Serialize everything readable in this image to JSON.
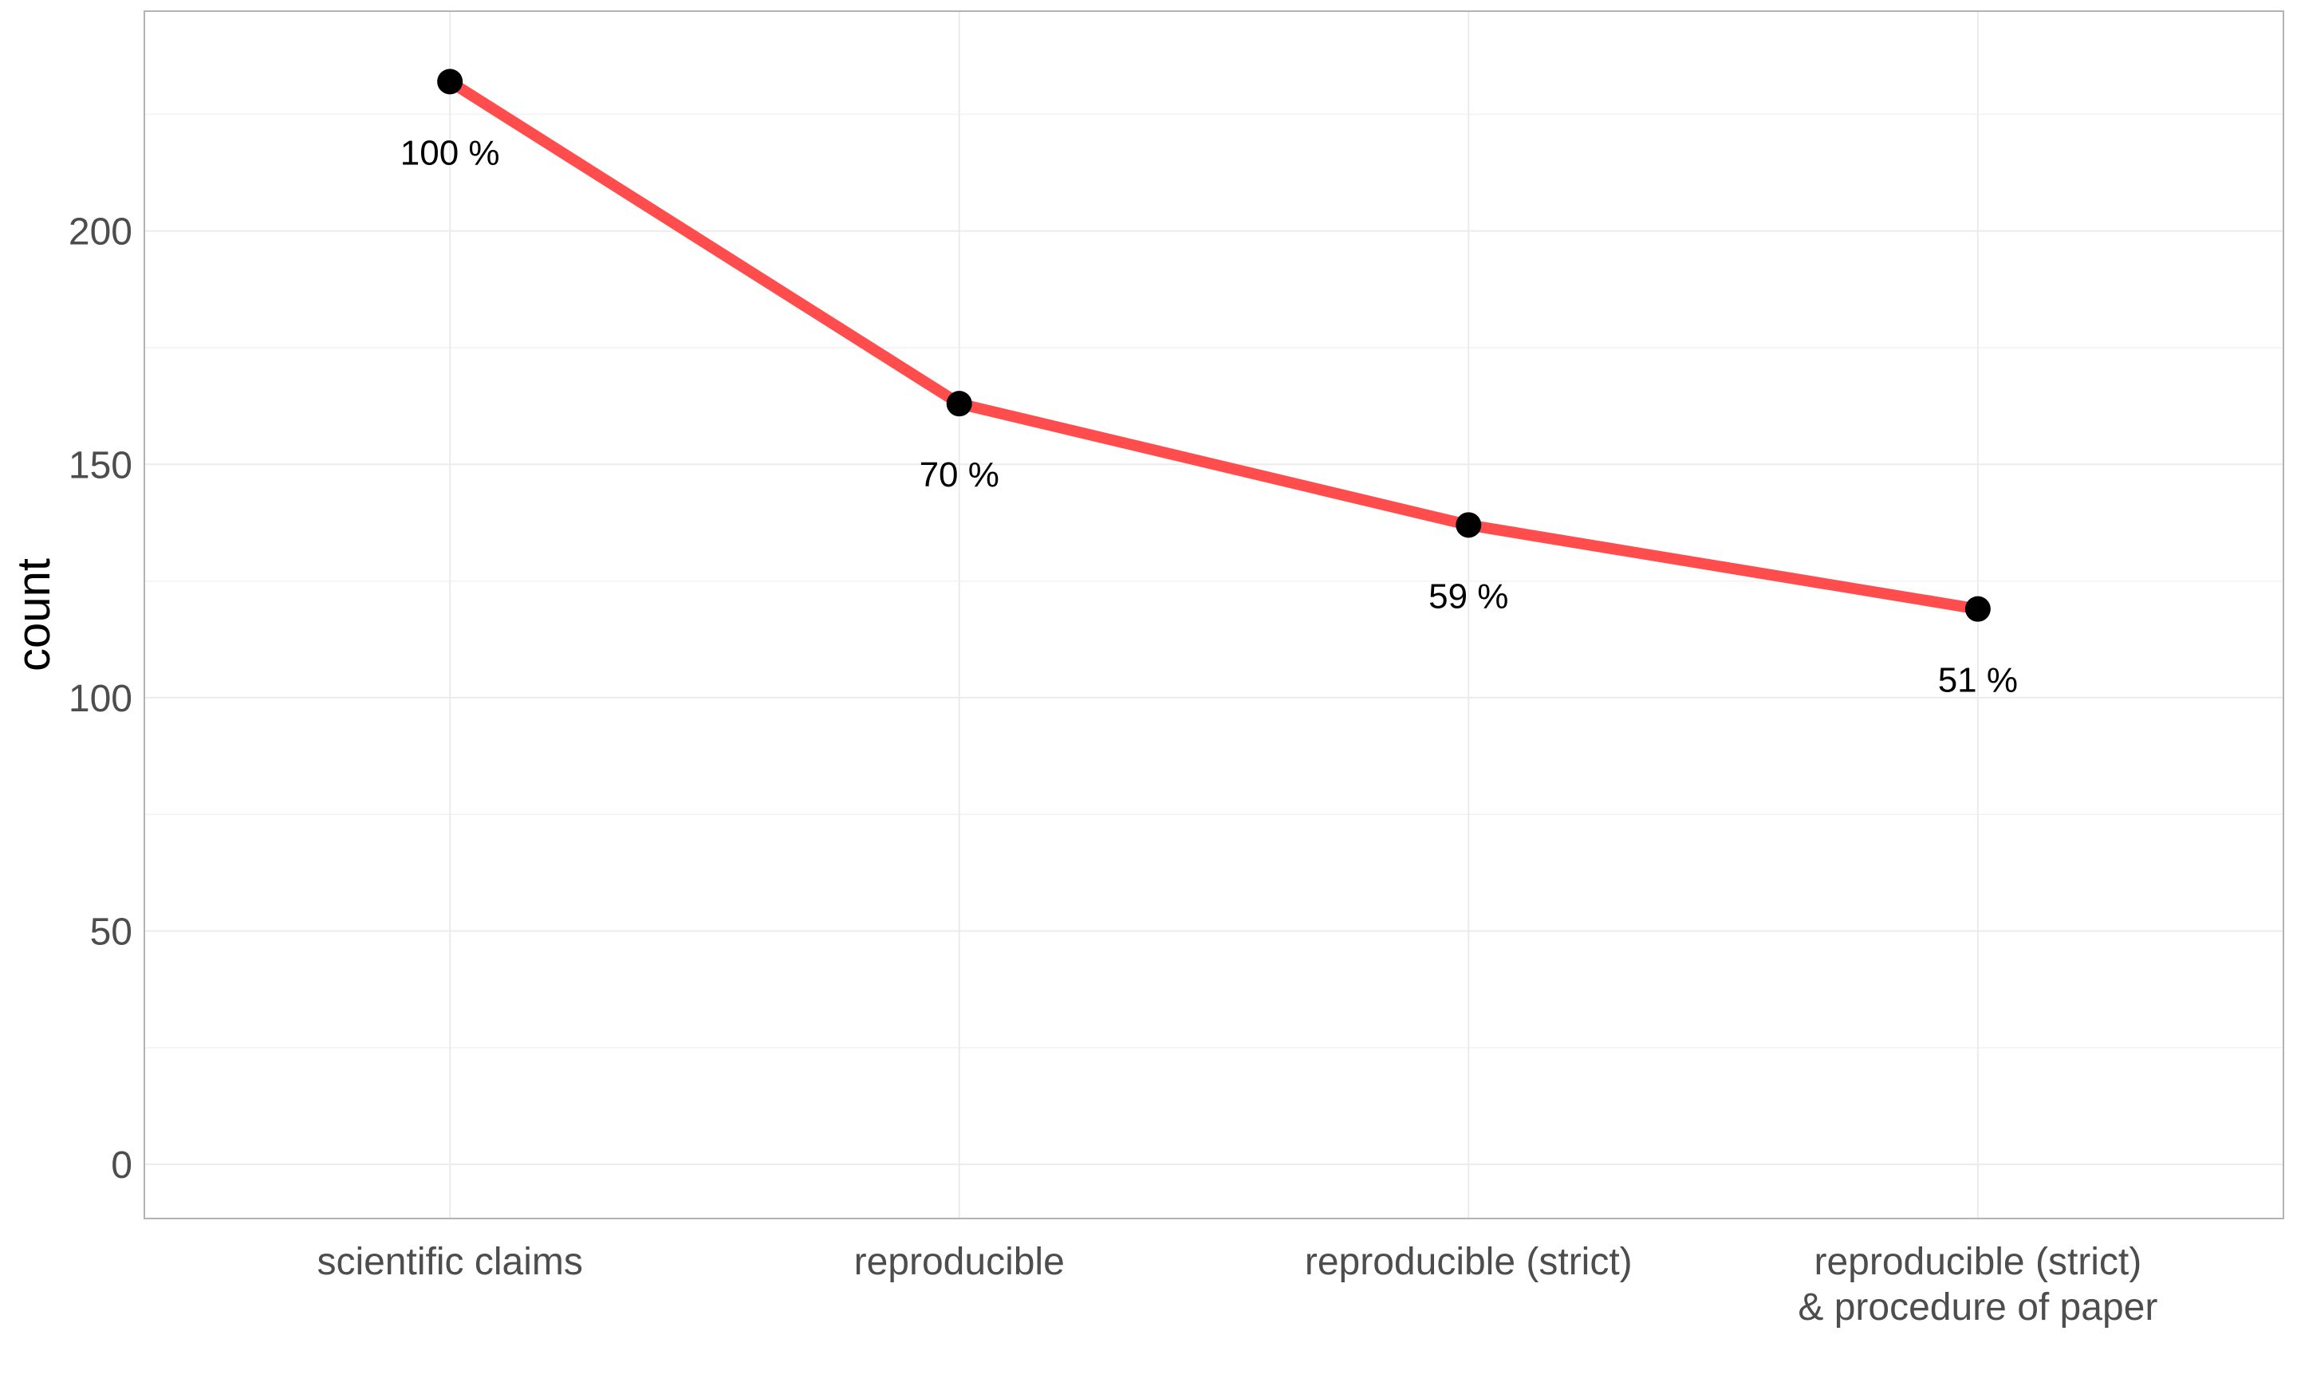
{
  "chart_data": {
    "type": "line",
    "categories": [
      [
        "scientific claims"
      ],
      [
        "reproducible"
      ],
      [
        "reproducible (strict)"
      ],
      [
        "reproducible (strict)",
        "& procedure of paper"
      ]
    ],
    "values": [
      232,
      163,
      137,
      119
    ],
    "data_labels": [
      "100 %",
      "70 %",
      "59 %",
      "51 %"
    ],
    "xlabel": "",
    "ylabel": "count",
    "ylim": [
      -11.6,
      247.1
    ],
    "yticks": [
      0,
      50,
      100,
      150,
      200
    ],
    "ytick_labels": [
      "0",
      "50",
      "100",
      "150",
      "200"
    ],
    "grid": true,
    "legend": "none",
    "colors": {
      "line": "#ff4d4d",
      "points": "#000000",
      "grid_major": "#ebebeb",
      "grid_minor": "#f2f2f2",
      "panel_border": "#b3b3b3",
      "tick_text": "#4d4d4d"
    }
  }
}
